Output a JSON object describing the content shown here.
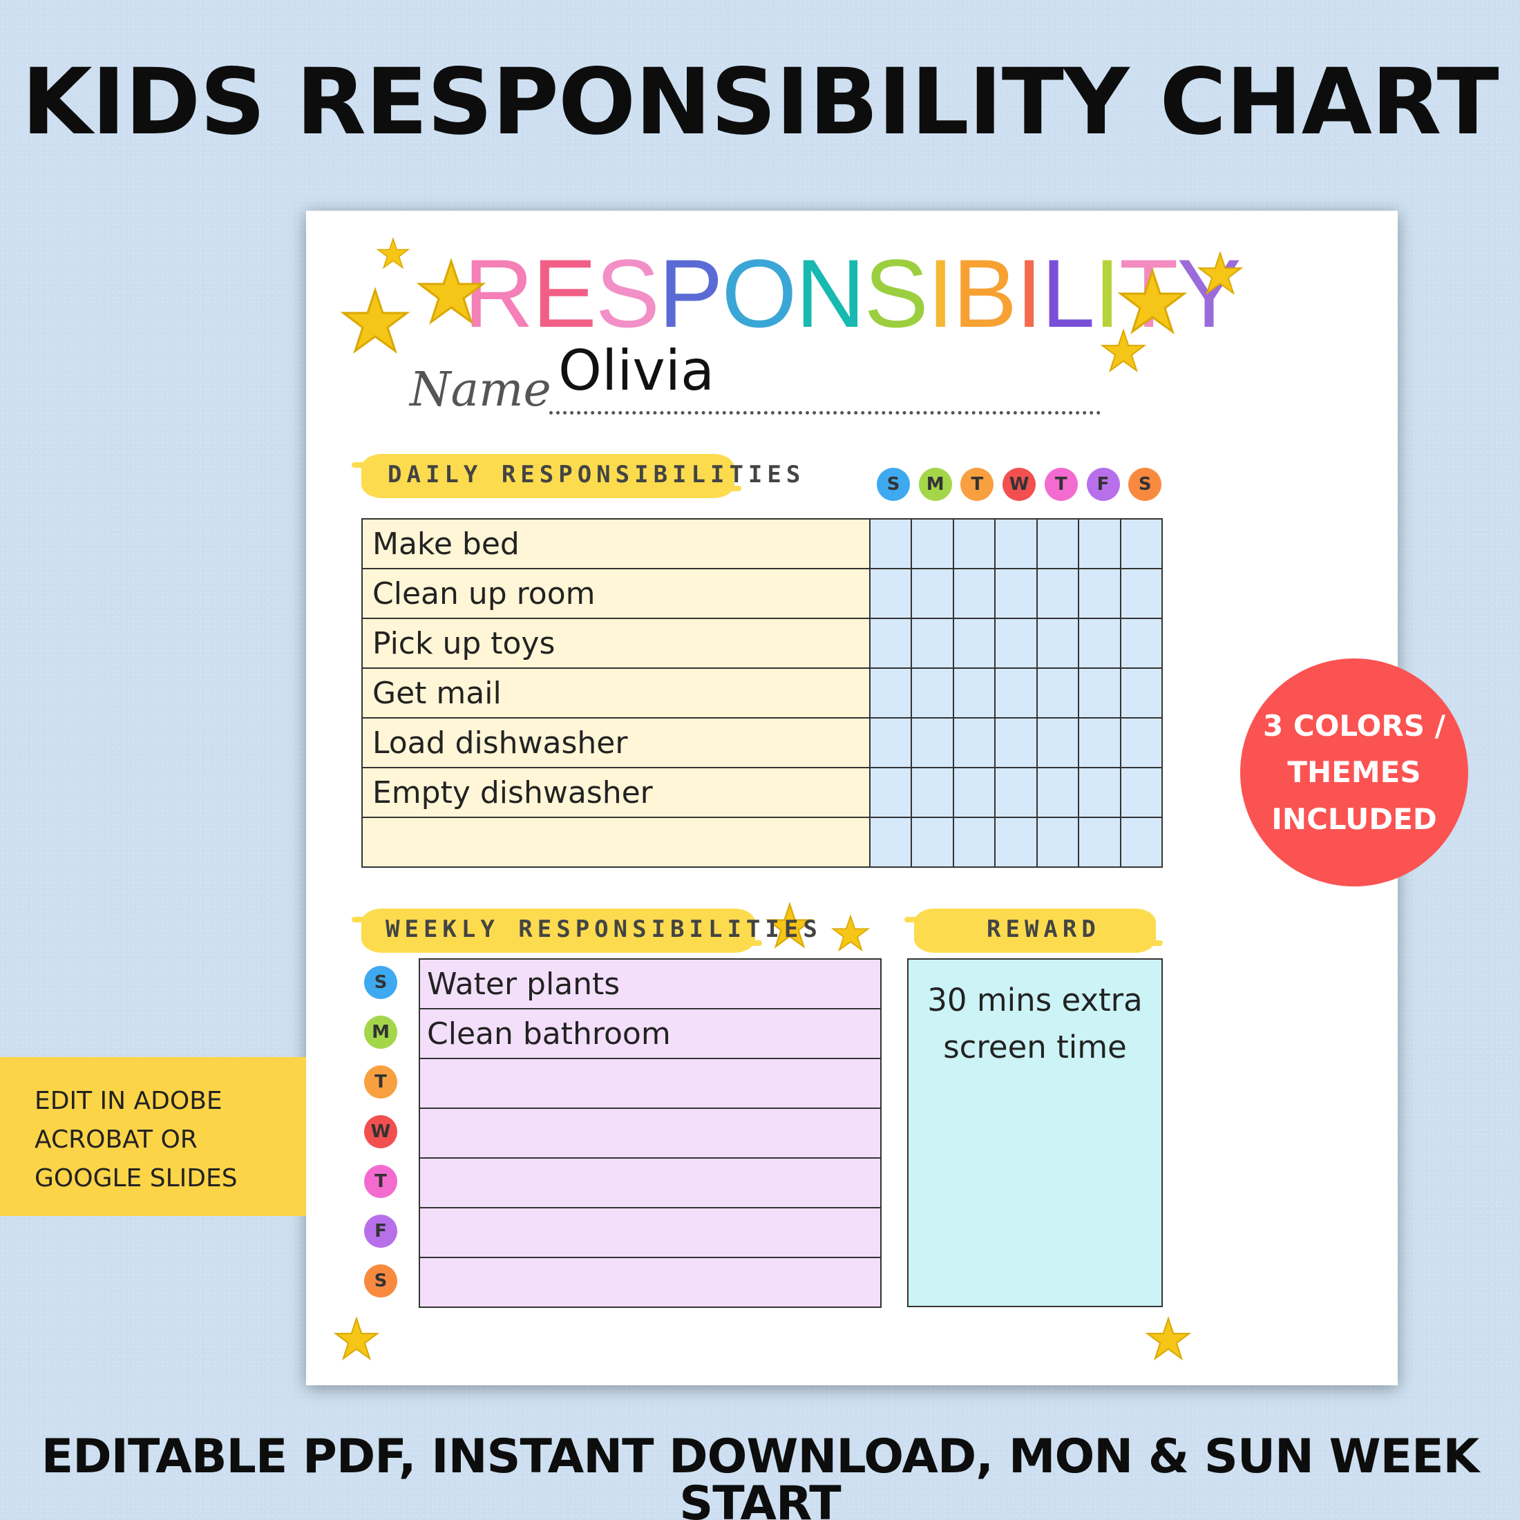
{
  "title": "KIDS RESPONSIBILITY CHART",
  "footer": "EDITABLE PDF, INSTANT DOWNLOAD, MON & SUN WEEK START",
  "badge": "3 COLORS / THEMES INCLUDED",
  "banner": "EDIT IN ADOBE ACROBAT OR GOOGLE SLIDES",
  "sheet": {
    "title_letters": [
      {
        "ch": "R",
        "color": "#f57fb7"
      },
      {
        "ch": "E",
        "color": "#f25f86"
      },
      {
        "ch": "S",
        "color": "#f28fc6"
      },
      {
        "ch": "P",
        "color": "#5b6bd6"
      },
      {
        "ch": "O",
        "color": "#3aa6d6"
      },
      {
        "ch": "N",
        "color": "#17b9b1"
      },
      {
        "ch": "S",
        "color": "#9bcf3f"
      },
      {
        "ch": "I",
        "color": "#f7b733"
      },
      {
        "ch": "B",
        "color": "#f7a132"
      },
      {
        "ch": "I",
        "color": "#f26b4f"
      },
      {
        "ch": "L",
        "color": "#7a4fd8"
      },
      {
        "ch": "I",
        "color": "#b7d33b"
      },
      {
        "ch": "T",
        "color": "#f38ac0"
      },
      {
        "ch": "Y",
        "color": "#9b6cd9"
      }
    ],
    "name_label": "Name",
    "name_value": "Olivia",
    "daily_label": "DAILY RESPONSIBILITIES",
    "weekly_label": "WEEKLY RESPONSIBILITIES",
    "reward_label": "REWARD",
    "days": [
      {
        "letter": "S",
        "color": "#3fa9f0"
      },
      {
        "letter": "M",
        "color": "#a4d64a"
      },
      {
        "letter": "T",
        "color": "#f8a040"
      },
      {
        "letter": "W",
        "color": "#f25050"
      },
      {
        "letter": "T",
        "color": "#f46bd0"
      },
      {
        "letter": "F",
        "color": "#b870ea"
      },
      {
        "letter": "S",
        "color": "#f88a40"
      }
    ],
    "daily_tasks": [
      "Make bed",
      "Clean up room",
      "Pick up toys",
      "Get mail",
      "Load dishwasher",
      "Empty dishwasher",
      ""
    ],
    "weekly_tasks": [
      "Water plants",
      "Clean bathroom",
      "",
      "",
      "",
      "",
      ""
    ],
    "reward": "30 mins extra screen time",
    "star_color": "#f5c518"
  }
}
